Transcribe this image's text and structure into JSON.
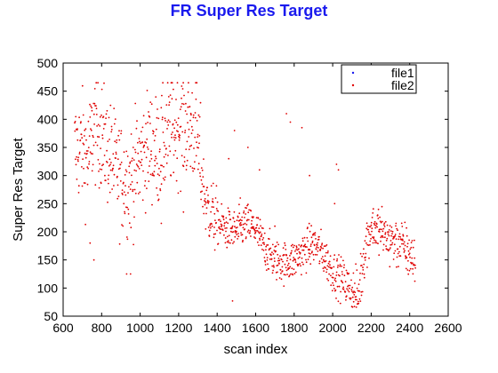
{
  "chart_data": {
    "type": "scatter",
    "title": "FR Super Res Target",
    "xlabel": "scan index",
    "ylabel": "Super Res Target",
    "xlim": [
      600,
      2600
    ],
    "ylim": [
      50,
      500
    ],
    "xticks": [
      600,
      800,
      1000,
      1200,
      1400,
      1600,
      1800,
      2000,
      2200,
      2400,
      2600
    ],
    "yticks": [
      50,
      100,
      150,
      200,
      250,
      300,
      350,
      400,
      450,
      500
    ],
    "grid": false,
    "legend_position": "top-right",
    "colors": {
      "file2": "#e00000",
      "file1": "#1a1aee",
      "title": "#1a1aee"
    },
    "series": [
      {
        "name": "file1",
        "marker": "dot",
        "values": []
      },
      {
        "name": "file2",
        "marker": "dot",
        "trend": [
          [
            660,
            345
          ],
          [
            700,
            350
          ],
          [
            730,
            330
          ],
          [
            760,
            390
          ],
          [
            800,
            370
          ],
          [
            850,
            330
          ],
          [
            900,
            295
          ],
          [
            950,
            290
          ],
          [
            1000,
            330
          ],
          [
            1050,
            355
          ],
          [
            1100,
            340
          ],
          [
            1150,
            375
          ],
          [
            1200,
            390
          ],
          [
            1250,
            385
          ],
          [
            1290,
            380
          ],
          [
            1310,
            330
          ],
          [
            1340,
            250
          ],
          [
            1400,
            215
          ],
          [
            1450,
            205
          ],
          [
            1500,
            200
          ],
          [
            1550,
            215
          ],
          [
            1600,
            205
          ],
          [
            1650,
            170
          ],
          [
            1700,
            150
          ],
          [
            1750,
            145
          ],
          [
            1800,
            150
          ],
          [
            1850,
            165
          ],
          [
            1900,
            180
          ],
          [
            1950,
            160
          ],
          [
            2000,
            130
          ],
          [
            2050,
            115
          ],
          [
            2100,
            95
          ],
          [
            2130,
            80
          ],
          [
            2170,
            175
          ],
          [
            2200,
            210
          ],
          [
            2250,
            200
          ],
          [
            2300,
            185
          ],
          [
            2350,
            180
          ],
          [
            2400,
            160
          ],
          [
            2430,
            145
          ]
        ],
        "cap": 465,
        "outliers": [
          [
            930,
            125
          ],
          [
            950,
            125
          ],
          [
            1110,
            215
          ],
          [
            1225,
            235
          ],
          [
            1480,
            77
          ],
          [
            1760,
            410
          ],
          [
            1780,
            395
          ],
          [
            1840,
            385
          ],
          [
            1490,
            380
          ],
          [
            1560,
            350
          ],
          [
            2020,
            320
          ],
          [
            2030,
            310
          ],
          [
            760,
            150
          ],
          [
            740,
            180
          ],
          [
            1460,
            330
          ],
          [
            1520,
            260
          ],
          [
            1700,
            210
          ],
          [
            1880,
            300
          ],
          [
            2010,
            250
          ],
          [
            1620,
            310
          ]
        ]
      }
    ]
  }
}
